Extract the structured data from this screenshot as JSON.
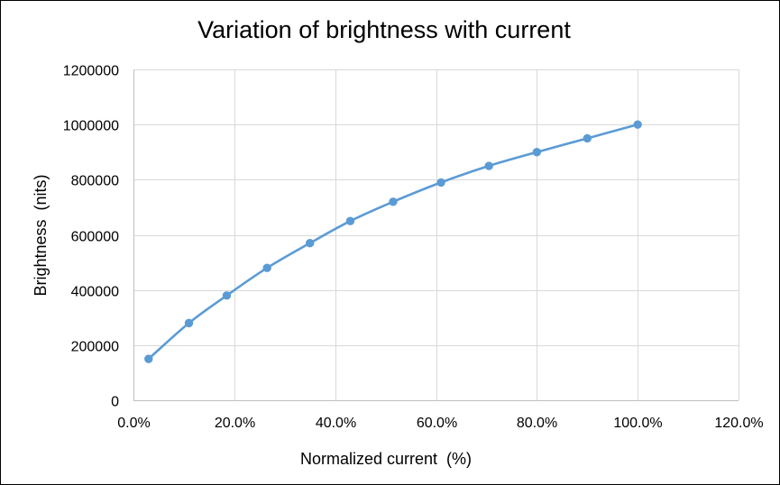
{
  "chart_data": {
    "type": "line",
    "title": "Variation of brightness with current",
    "xlabel": "Normalized current  (%)",
    "ylabel": "Brightness  (nits)",
    "xlim": [
      0,
      1.2
    ],
    "ylim": [
      0,
      1200000
    ],
    "x_ticks": [
      0,
      0.2,
      0.4,
      0.6,
      0.8,
      1.0,
      1.2
    ],
    "x_tick_labels": [
      "0.0%",
      "20.0%",
      "40.0%",
      "60.0%",
      "80.0%",
      "100.0%",
      "120.0%"
    ],
    "y_ticks": [
      0,
      200000,
      400000,
      600000,
      800000,
      1000000,
      1200000
    ],
    "y_tick_labels": [
      "0",
      "200000",
      "400000",
      "600000",
      "800000",
      "1000000",
      "1200000"
    ],
    "grid": true,
    "legend": "none",
    "series": [
      {
        "color": "#5b9bd5",
        "x": [
          0.03,
          0.11,
          0.185,
          0.265,
          0.35,
          0.43,
          0.515,
          0.61,
          0.705,
          0.8,
          0.9,
          1.0
        ],
        "y": [
          150000,
          280000,
          380000,
          480000,
          570000,
          650000,
          720000,
          790000,
          850000,
          900000,
          950000,
          1000000
        ]
      }
    ]
  }
}
